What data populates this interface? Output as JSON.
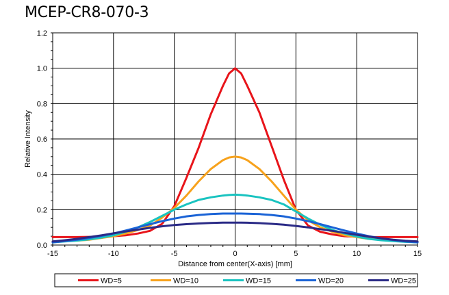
{
  "chart_data": {
    "type": "line",
    "title": "MCEP-CR8-070-3",
    "xlabel": "Distance from center(X-axis) [mm]",
    "ylabel": "Relative Intensity",
    "xlim": [
      -15,
      15
    ],
    "ylim": [
      0,
      1.2
    ],
    "x_ticks": [
      "-15",
      "-10",
      "-5",
      "0",
      "5",
      "10",
      "15"
    ],
    "y_ticks": [
      "0.0",
      "0.2",
      "0.4",
      "0.6",
      "0.8",
      "1.0",
      "1.2"
    ],
    "grid": true,
    "legend_position": "bottom",
    "x": [
      -15,
      -14,
      -13,
      -12,
      -11,
      -10,
      -9,
      -8,
      -7,
      -6,
      -5,
      -4,
      -3,
      -2,
      -1,
      -0.5,
      0,
      0.5,
      1,
      2,
      3,
      4,
      5,
      6,
      7,
      8,
      9,
      10,
      11,
      12,
      13,
      14,
      15
    ],
    "series": [
      {
        "name": "WD=5",
        "color": "#e8141a",
        "values": [
          0.045,
          0.045,
          0.045,
          0.046,
          0.048,
          0.05,
          0.055,
          0.065,
          0.08,
          0.12,
          0.22,
          0.38,
          0.55,
          0.74,
          0.9,
          0.97,
          1.0,
          0.97,
          0.9,
          0.75,
          0.56,
          0.37,
          0.2,
          0.11,
          0.075,
          0.06,
          0.05,
          0.047,
          0.045,
          0.045,
          0.045,
          0.045,
          0.045
        ]
      },
      {
        "name": "WD=10",
        "color": "#f7a21c",
        "values": [
          0.02,
          0.022,
          0.025,
          0.03,
          0.04,
          0.05,
          0.065,
          0.085,
          0.11,
          0.155,
          0.21,
          0.28,
          0.36,
          0.43,
          0.48,
          0.495,
          0.5,
          0.495,
          0.48,
          0.43,
          0.36,
          0.28,
          0.2,
          0.14,
          0.1,
          0.075,
          0.055,
          0.045,
          0.035,
          0.03,
          0.025,
          0.022,
          0.02
        ]
      },
      {
        "name": "WD=15",
        "color": "#19c3c0",
        "values": [
          0.015,
          0.02,
          0.025,
          0.032,
          0.042,
          0.055,
          0.075,
          0.1,
          0.13,
          0.165,
          0.2,
          0.23,
          0.255,
          0.27,
          0.28,
          0.283,
          0.285,
          0.283,
          0.28,
          0.27,
          0.255,
          0.23,
          0.19,
          0.15,
          0.115,
          0.085,
          0.065,
          0.048,
          0.035,
          0.027,
          0.022,
          0.018,
          0.015
        ]
      },
      {
        "name": "WD=20",
        "color": "#1a63d6",
        "values": [
          0.015,
          0.022,
          0.03,
          0.04,
          0.052,
          0.065,
          0.082,
          0.1,
          0.118,
          0.135,
          0.15,
          0.162,
          0.17,
          0.175,
          0.178,
          0.178,
          0.178,
          0.178,
          0.177,
          0.175,
          0.17,
          0.162,
          0.15,
          0.135,
          0.118,
          0.1,
          0.082,
          0.065,
          0.05,
          0.038,
          0.028,
          0.02,
          0.015
        ]
      },
      {
        "name": "WD=25",
        "color": "#2a2a86",
        "values": [
          0.02,
          0.027,
          0.035,
          0.045,
          0.055,
          0.066,
          0.077,
          0.087,
          0.097,
          0.106,
          0.113,
          0.118,
          0.122,
          0.125,
          0.127,
          0.127,
          0.127,
          0.127,
          0.126,
          0.124,
          0.12,
          0.115,
          0.108,
          0.1,
          0.09,
          0.08,
          0.069,
          0.058,
          0.048,
          0.038,
          0.03,
          0.024,
          0.02
        ]
      }
    ]
  }
}
